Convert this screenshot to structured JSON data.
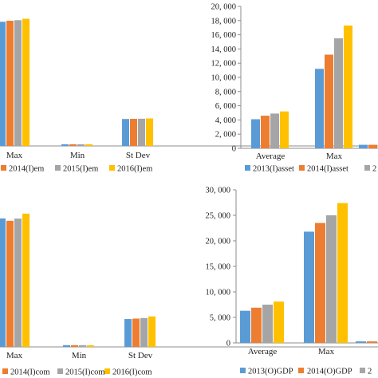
{
  "colors": {
    "s1": "#5b9bd5",
    "s2": "#ed7d31",
    "s3": "#a5a5a5",
    "s4": "#ffc000",
    "axis": "#8c8c8c"
  },
  "chart_data": [
    {
      "type": "bar",
      "categories": [
        "Max",
        "Min",
        "St Dev"
      ],
      "series": [
        {
          "name": "",
          "values": [
            88.5,
            1.2,
            19.2
          ]
        },
        {
          "name": "2014(I)em",
          "values": [
            89.2,
            1.2,
            19.3
          ]
        },
        {
          "name": "2015(I)em",
          "values": [
            89.6,
            1.2,
            19.4
          ]
        },
        {
          "name": "2016(I)em",
          "values": [
            90.6,
            1.2,
            19.6
          ]
        }
      ],
      "ylim": [
        0,
        100
      ],
      "grid": false,
      "legend": "bottom"
    },
    {
      "type": "bar",
      "categories": [
        "Average",
        "Max",
        ""
      ],
      "series": [
        {
          "name": "2013(I)asset",
          "values": [
            4.1,
            11.2,
            0.5
          ]
        },
        {
          "name": "2014(I)asset",
          "values": [
            4.6,
            13.2,
            0.5
          ]
        },
        {
          "name": "",
          "values": [
            4.9,
            15.5,
            0.5
          ]
        },
        {
          "name": "",
          "values": [
            5.2,
            17.3,
            0.5
          ]
        }
      ],
      "yticks": [
        "0",
        "2, 000",
        "4, 000",
        "6, 000",
        "8, 000",
        "10, 000",
        "12, 000",
        "14, 000",
        "16, 000",
        "18, 000",
        "20, 000"
      ],
      "ylim": [
        0,
        20
      ],
      "grid": false,
      "legend": "bottom"
    },
    {
      "type": "bar",
      "categories": [
        "Max",
        "Min",
        "St Dev"
      ],
      "series": [
        {
          "name": "",
          "values": [
            88.5,
            1.2,
            19.2
          ]
        },
        {
          "name": "2014(I)com",
          "values": [
            86.9,
            1.2,
            19.5
          ]
        },
        {
          "name": "2015(I)com",
          "values": [
            88.4,
            1.2,
            19.9
          ]
        },
        {
          "name": "2016(I)com",
          "values": [
            91.8,
            1.1,
            21.0
          ]
        }
      ],
      "ylim": [
        0,
        100
      ],
      "grid": false,
      "legend": "bottom"
    },
    {
      "type": "bar",
      "categories": [
        "Average",
        "Max",
        ""
      ],
      "series": [
        {
          "name": "2013(O)GDP",
          "values": [
            6.3,
            21.8,
            0.3
          ]
        },
        {
          "name": "2014(O)GDP",
          "values": [
            6.9,
            23.5,
            0.3
          ]
        },
        {
          "name": "",
          "values": [
            7.5,
            25.0,
            0.3
          ]
        },
        {
          "name": "",
          "values": [
            8.1,
            27.4,
            0.3
          ]
        }
      ],
      "yticks": [
        "0",
        "5, 000",
        "10, 000",
        "15, 000",
        "20, 000",
        "25, 000",
        "30, 000"
      ],
      "ylim": [
        0,
        30
      ],
      "grid": false,
      "legend": "bottom"
    }
  ],
  "legend_partial": {
    "p1_first": "",
    "p2_third": "2",
    "p3_first": "",
    "p4_third": "2"
  }
}
